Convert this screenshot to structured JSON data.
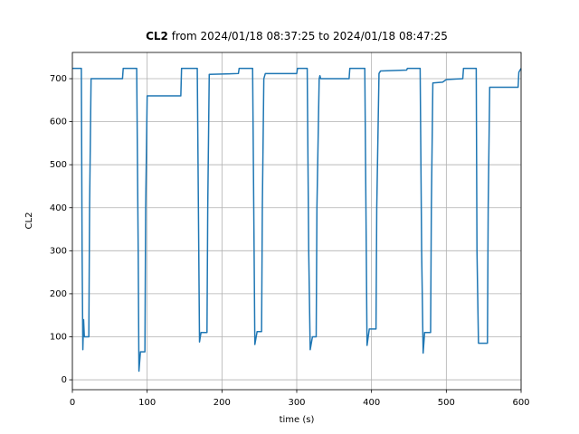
{
  "chart_data": {
    "type": "line",
    "title_bold": "CL2",
    "title": "from 2024/01/18 08:37:25 to 2024/01/18 08:47:25",
    "xlabel": "time (s)",
    "ylabel": "CL2",
    "x": [
      0,
      12,
      13,
      14,
      15,
      16,
      22,
      23,
      25,
      67,
      68,
      86,
      88,
      89,
      91,
      97,
      98,
      100,
      145,
      146,
      167,
      169,
      170,
      172,
      180,
      181,
      183,
      222,
      223,
      241,
      243,
      244,
      247,
      253,
      254,
      256,
      258,
      300,
      301,
      314,
      316,
      318,
      321,
      326,
      327,
      330,
      331,
      332,
      370,
      371,
      391,
      393,
      394,
      397,
      406,
      407,
      410,
      412,
      447,
      448,
      465,
      467,
      469,
      471,
      479,
      480,
      482,
      495,
      500,
      522,
      523,
      540,
      541,
      543,
      555,
      556,
      558,
      596,
      597,
      600
    ],
    "series": [
      {
        "name": "CL2",
        "color": "#1f77b4",
        "values": [
          724,
          724,
          300,
          70,
          140,
          100,
          100,
          400,
          700,
          700,
          724,
          724,
          300,
          20,
          65,
          65,
          400,
          660,
          660,
          724,
          724,
          300,
          88,
          110,
          110,
          400,
          710,
          712,
          724,
          724,
          300,
          82,
          112,
          112,
          400,
          700,
          712,
          712,
          724,
          724,
          300,
          70,
          100,
          100,
          400,
          700,
          707,
          700,
          700,
          724,
          724,
          300,
          80,
          118,
          118,
          400,
          712,
          718,
          720,
          724,
          724,
          300,
          62,
          110,
          110,
          400,
          690,
          692,
          698,
          700,
          724,
          724,
          300,
          85,
          85,
          400,
          680,
          680,
          715,
          724
        ]
      }
    ],
    "xlim": [
      0,
      600
    ],
    "ylim": [
      -23,
      761
    ],
    "xticks": [
      0,
      100,
      200,
      300,
      400,
      500,
      600
    ],
    "yticks": [
      0,
      100,
      200,
      300,
      400,
      500,
      600,
      700
    ],
    "grid": true
  }
}
